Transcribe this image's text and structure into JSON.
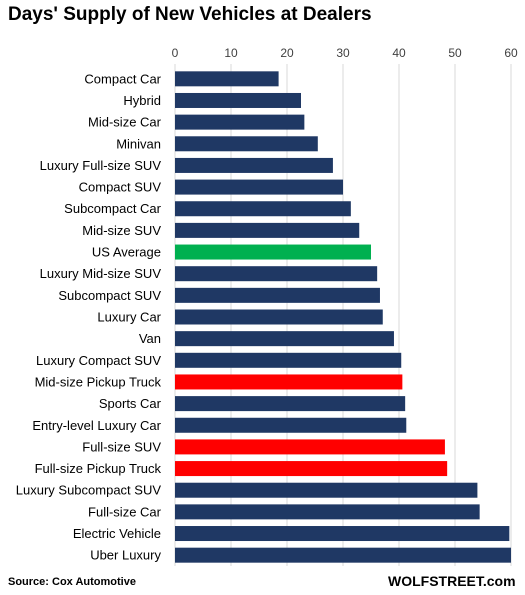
{
  "source": "Source: Cox Automotive",
  "brand": "WOLFSTREET.com",
  "colors": {
    "default": "#1f3864",
    "average": "#00b050",
    "highlight": "#ff0000",
    "grid": "#d9d9d9"
  },
  "chart_data": {
    "type": "bar",
    "orientation": "horizontal",
    "title": "Days' Supply of New Vehicles at Dealers",
    "xlim": [
      0,
      60
    ],
    "xticks": [
      0,
      10,
      20,
      30,
      40,
      50,
      60
    ],
    "x_axis_position": "top",
    "grid": true,
    "categories": [
      "Compact Car",
      "Hybrid",
      "Mid-size Car",
      "Minivan",
      "Luxury Full-size SUV",
      "Compact SUV",
      "Subcompact Car",
      "Mid-size SUV",
      "US Average",
      "Luxury Mid-size SUV",
      "Subcompact SUV",
      "Luxury Car",
      "Van",
      "Luxury Compact SUV",
      "Mid-size Pickup Truck",
      "Sports Car",
      "Entry-level Luxury Car",
      "Full-size SUV",
      "Full-size Pickup Truck",
      "Luxury Subcompact SUV",
      "Full-size Car",
      "Electric Vehicle",
      "Uber Luxury"
    ],
    "values": [
      18.5,
      22.5,
      23.1,
      25.5,
      28.2,
      30.0,
      31.4,
      32.9,
      35.0,
      36.1,
      36.6,
      37.1,
      39.1,
      40.4,
      40.6,
      41.1,
      41.3,
      48.2,
      48.6,
      54.0,
      54.4,
      59.7,
      60.0
    ],
    "bar_colors": [
      "default",
      "default",
      "default",
      "default",
      "default",
      "default",
      "default",
      "default",
      "average",
      "default",
      "default",
      "default",
      "default",
      "default",
      "highlight",
      "default",
      "default",
      "highlight",
      "highlight",
      "default",
      "default",
      "default",
      "default"
    ]
  }
}
